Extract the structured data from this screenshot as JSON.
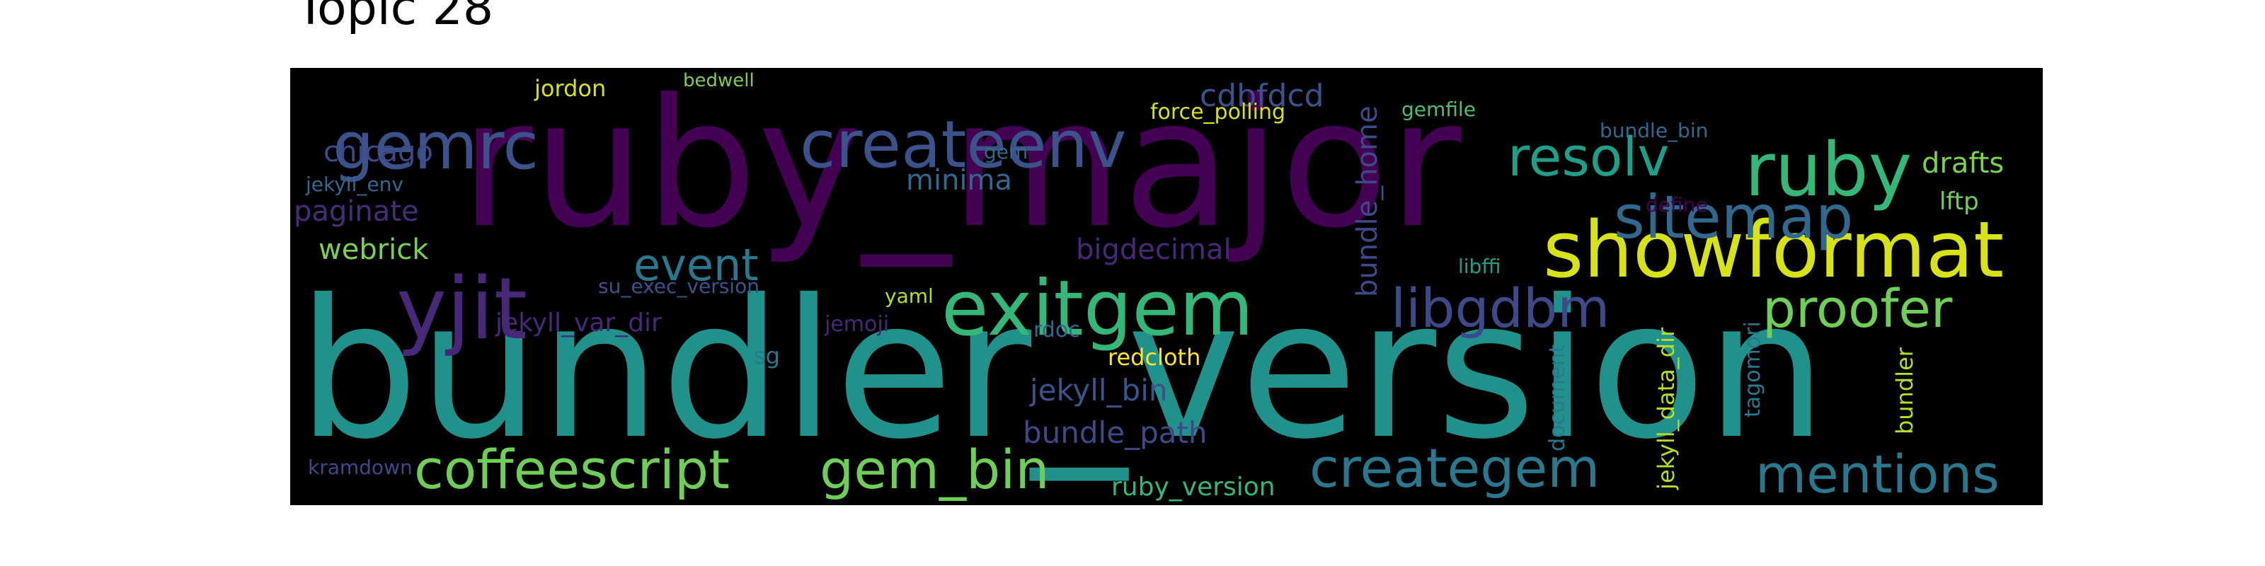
{
  "title": "Topic 28",
  "cloud": {
    "background": "#000000",
    "words": [
      {
        "text": "bundler_version",
        "color": "#21918c"
      },
      {
        "text": "ruby_major",
        "color": "#440154"
      },
      {
        "text": "showformat",
        "color": "#d8e219"
      },
      {
        "text": "exitgem",
        "color": "#35b779"
      },
      {
        "text": "createenv",
        "color": "#3b528b"
      },
      {
        "text": "gemrc",
        "color": "#3b528b"
      },
      {
        "text": "ruby",
        "color": "#35b779"
      },
      {
        "text": "yjit",
        "color": "#482878"
      },
      {
        "text": "coffeescript",
        "color": "#6ece58"
      },
      {
        "text": "gem_bin",
        "color": "#6ece58"
      },
      {
        "text": "creategem",
        "color": "#2a788e"
      },
      {
        "text": "mentions",
        "color": "#2a788e"
      },
      {
        "text": "sitemap",
        "color": "#31688e"
      },
      {
        "text": "libgdbm",
        "color": "#3e4989"
      },
      {
        "text": "proofer",
        "color": "#6ece58"
      },
      {
        "text": "resolv",
        "color": "#1f9e89"
      },
      {
        "text": "event",
        "color": "#2a788e"
      },
      {
        "text": "cdbfdcd",
        "color": "#3b528b"
      },
      {
        "text": "chicago",
        "color": "#3e4989"
      },
      {
        "text": "paginate",
        "color": "#472c7a"
      },
      {
        "text": "webrick",
        "color": "#7ad151"
      },
      {
        "text": "minima",
        "color": "#31688e"
      },
      {
        "text": "bigdecimal",
        "color": "#482878"
      },
      {
        "text": "bundle_home",
        "color": "#3e4989"
      },
      {
        "text": "jekyll_bin",
        "color": "#3b528b"
      },
      {
        "text": "bundle_path",
        "color": "#3e4989"
      },
      {
        "text": "drafts",
        "color": "#7ad151"
      },
      {
        "text": "lftp",
        "color": "#6ece58"
      },
      {
        "text": "jordon",
        "color": "#d8e219"
      },
      {
        "text": "force_polling",
        "color": "#d8e219"
      },
      {
        "text": "gemfile",
        "color": "#4ac16d"
      },
      {
        "text": "bundle_bin",
        "color": "#31688e"
      },
      {
        "text": "define",
        "color": "#440154"
      },
      {
        "text": "bedwell",
        "color": "#7ad151"
      },
      {
        "text": "jekyll_env",
        "color": "#31688e"
      },
      {
        "text": "gem",
        "color": "#31688e"
      },
      {
        "text": "libffi",
        "color": "#1f9e89"
      },
      {
        "text": "su_exec_version",
        "color": "#3b528b"
      },
      {
        "text": "yaml",
        "color": "#b5de2b"
      },
      {
        "text": "jekyll_var_dir",
        "color": "#482878"
      },
      {
        "text": "jemoji",
        "color": "#482878"
      },
      {
        "text": "rdoc",
        "color": "#31688e"
      },
      {
        "text": "sg",
        "color": "#2a788e"
      },
      {
        "text": "redcloth",
        "color": "#fde725"
      },
      {
        "text": "ruby_version",
        "color": "#35b779"
      },
      {
        "text": "kramdown",
        "color": "#3e4989"
      },
      {
        "text": "jekyll_data_dir",
        "color": "#b5de2b"
      },
      {
        "text": "document",
        "color": "#2a788e"
      },
      {
        "text": "tagomori",
        "color": "#2a788e"
      },
      {
        "text": "bundler",
        "color": "#b5de2b"
      }
    ]
  }
}
